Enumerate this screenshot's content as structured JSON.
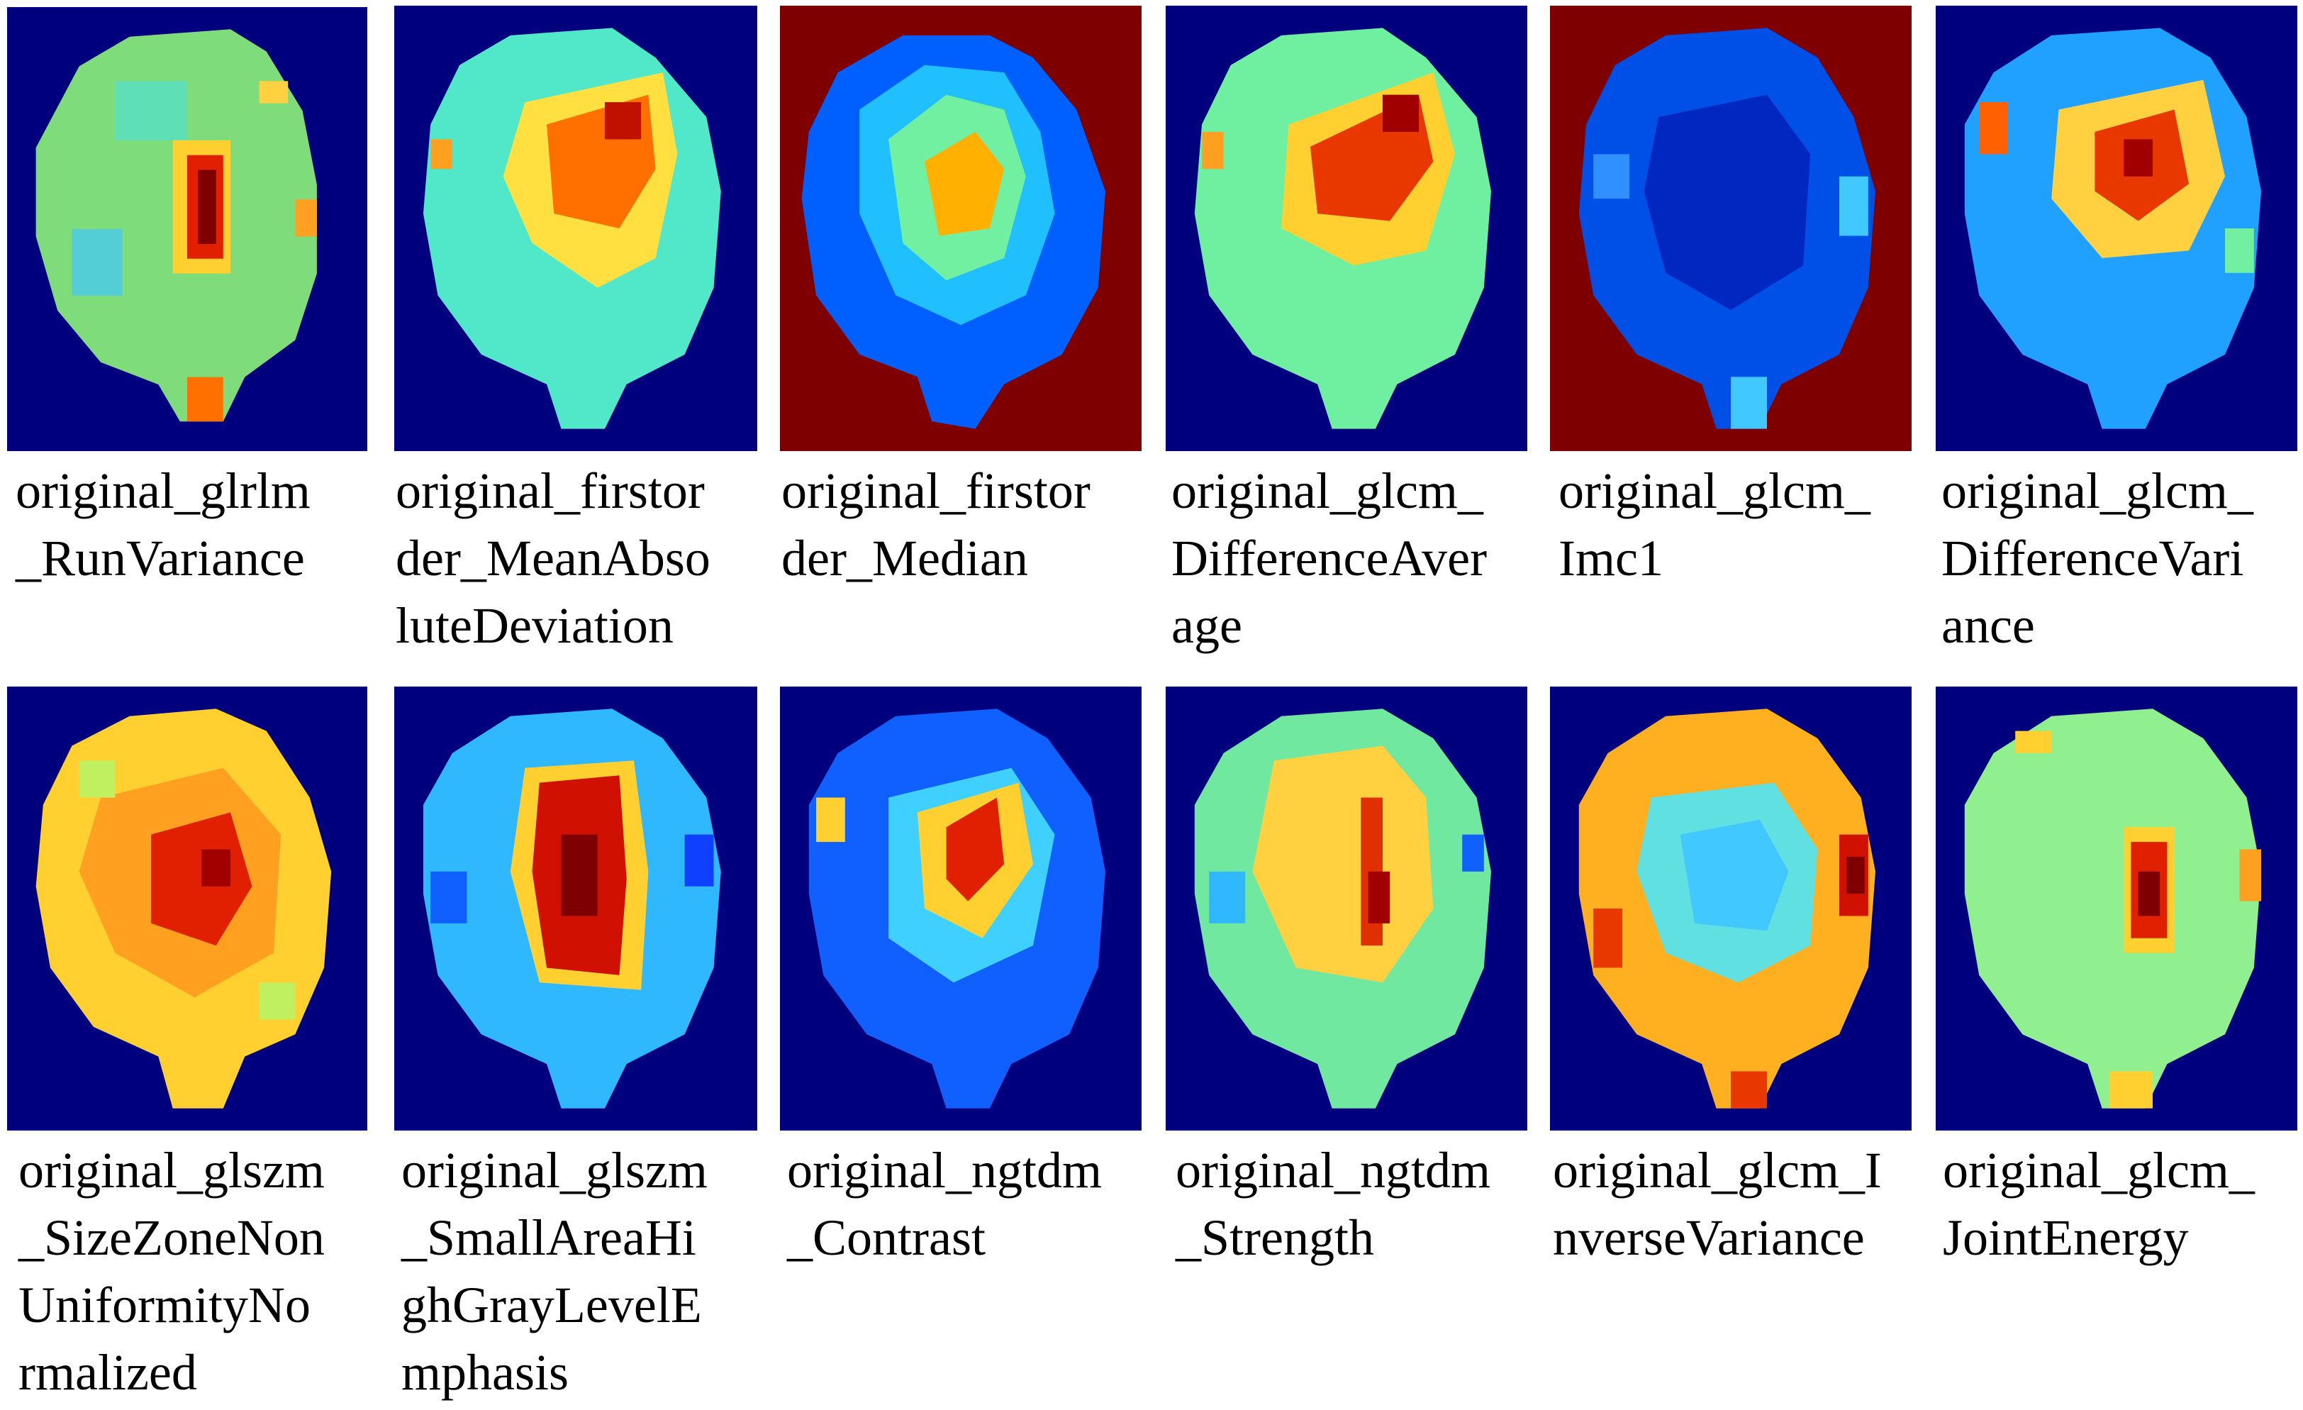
{
  "figure": {
    "panels": [
      {
        "id": "p1",
        "lines": [
          "original_glrlm",
          "_RunVariance"
        ],
        "background": "#00007f",
        "region": "#7fdc7a",
        "accent": "#a50000"
      },
      {
        "id": "p2",
        "lines": [
          "original_firstor",
          "der_MeanAbso",
          "luteDeviation"
        ],
        "background": "#00007f",
        "region": "#50e8c8",
        "accent": "#e83800"
      },
      {
        "id": "p3",
        "lines": [
          "original_firstor",
          "der_Median"
        ],
        "background": "#7f0000",
        "region": "#0060ff",
        "accent": "#ffb000"
      },
      {
        "id": "p4",
        "lines": [
          "original_glcm_",
          "DifferenceAver",
          "age"
        ],
        "background": "#00007f",
        "region": "#6ef0a0",
        "accent": "#e83800"
      },
      {
        "id": "p5",
        "lines": [
          "original_glcm_",
          "Imc1"
        ],
        "background": "#7f0000",
        "region": "#0050e8",
        "accent": "#40c8ff"
      },
      {
        "id": "p6",
        "lines": [
          "original_glcm_",
          "DifferenceVari",
          "ance"
        ],
        "background": "#00007f",
        "region": "#20a0ff",
        "accent": "#c01000"
      },
      {
        "id": "p7",
        "lines": [
          "original_glszm",
          "_SizeZoneNon",
          "UniformityNo",
          "rmalized"
        ],
        "background": "#00007f",
        "region": "#ffd030",
        "accent": "#e02000"
      },
      {
        "id": "p8",
        "lines": [
          "original_glszm",
          "_SmallAreaHi",
          "ghGrayLevelE",
          "mphasis"
        ],
        "background": "#00007f",
        "region": "#30b8ff",
        "accent": "#b00000"
      },
      {
        "id": "p9",
        "lines": [
          "original_ngtdm",
          "_Contrast"
        ],
        "background": "#00007f",
        "region": "#1060ff",
        "accent": "#e02000"
      },
      {
        "id": "p10",
        "lines": [
          "original_ngtdm",
          "_Strength"
        ],
        "background": "#00007f",
        "region": "#70e8a0",
        "accent": "#e03000"
      },
      {
        "id": "p11",
        "lines": [
          "original_glcm_I",
          "nverseVariance"
        ],
        "background": "#00007f",
        "region": "#ffb020",
        "accent": "#60e0e0"
      },
      {
        "id": "p12",
        "lines": [
          "original_glcm_",
          "JointEnergy"
        ],
        "background": "#00007f",
        "region": "#90f090",
        "accent": "#b00000"
      }
    ]
  }
}
